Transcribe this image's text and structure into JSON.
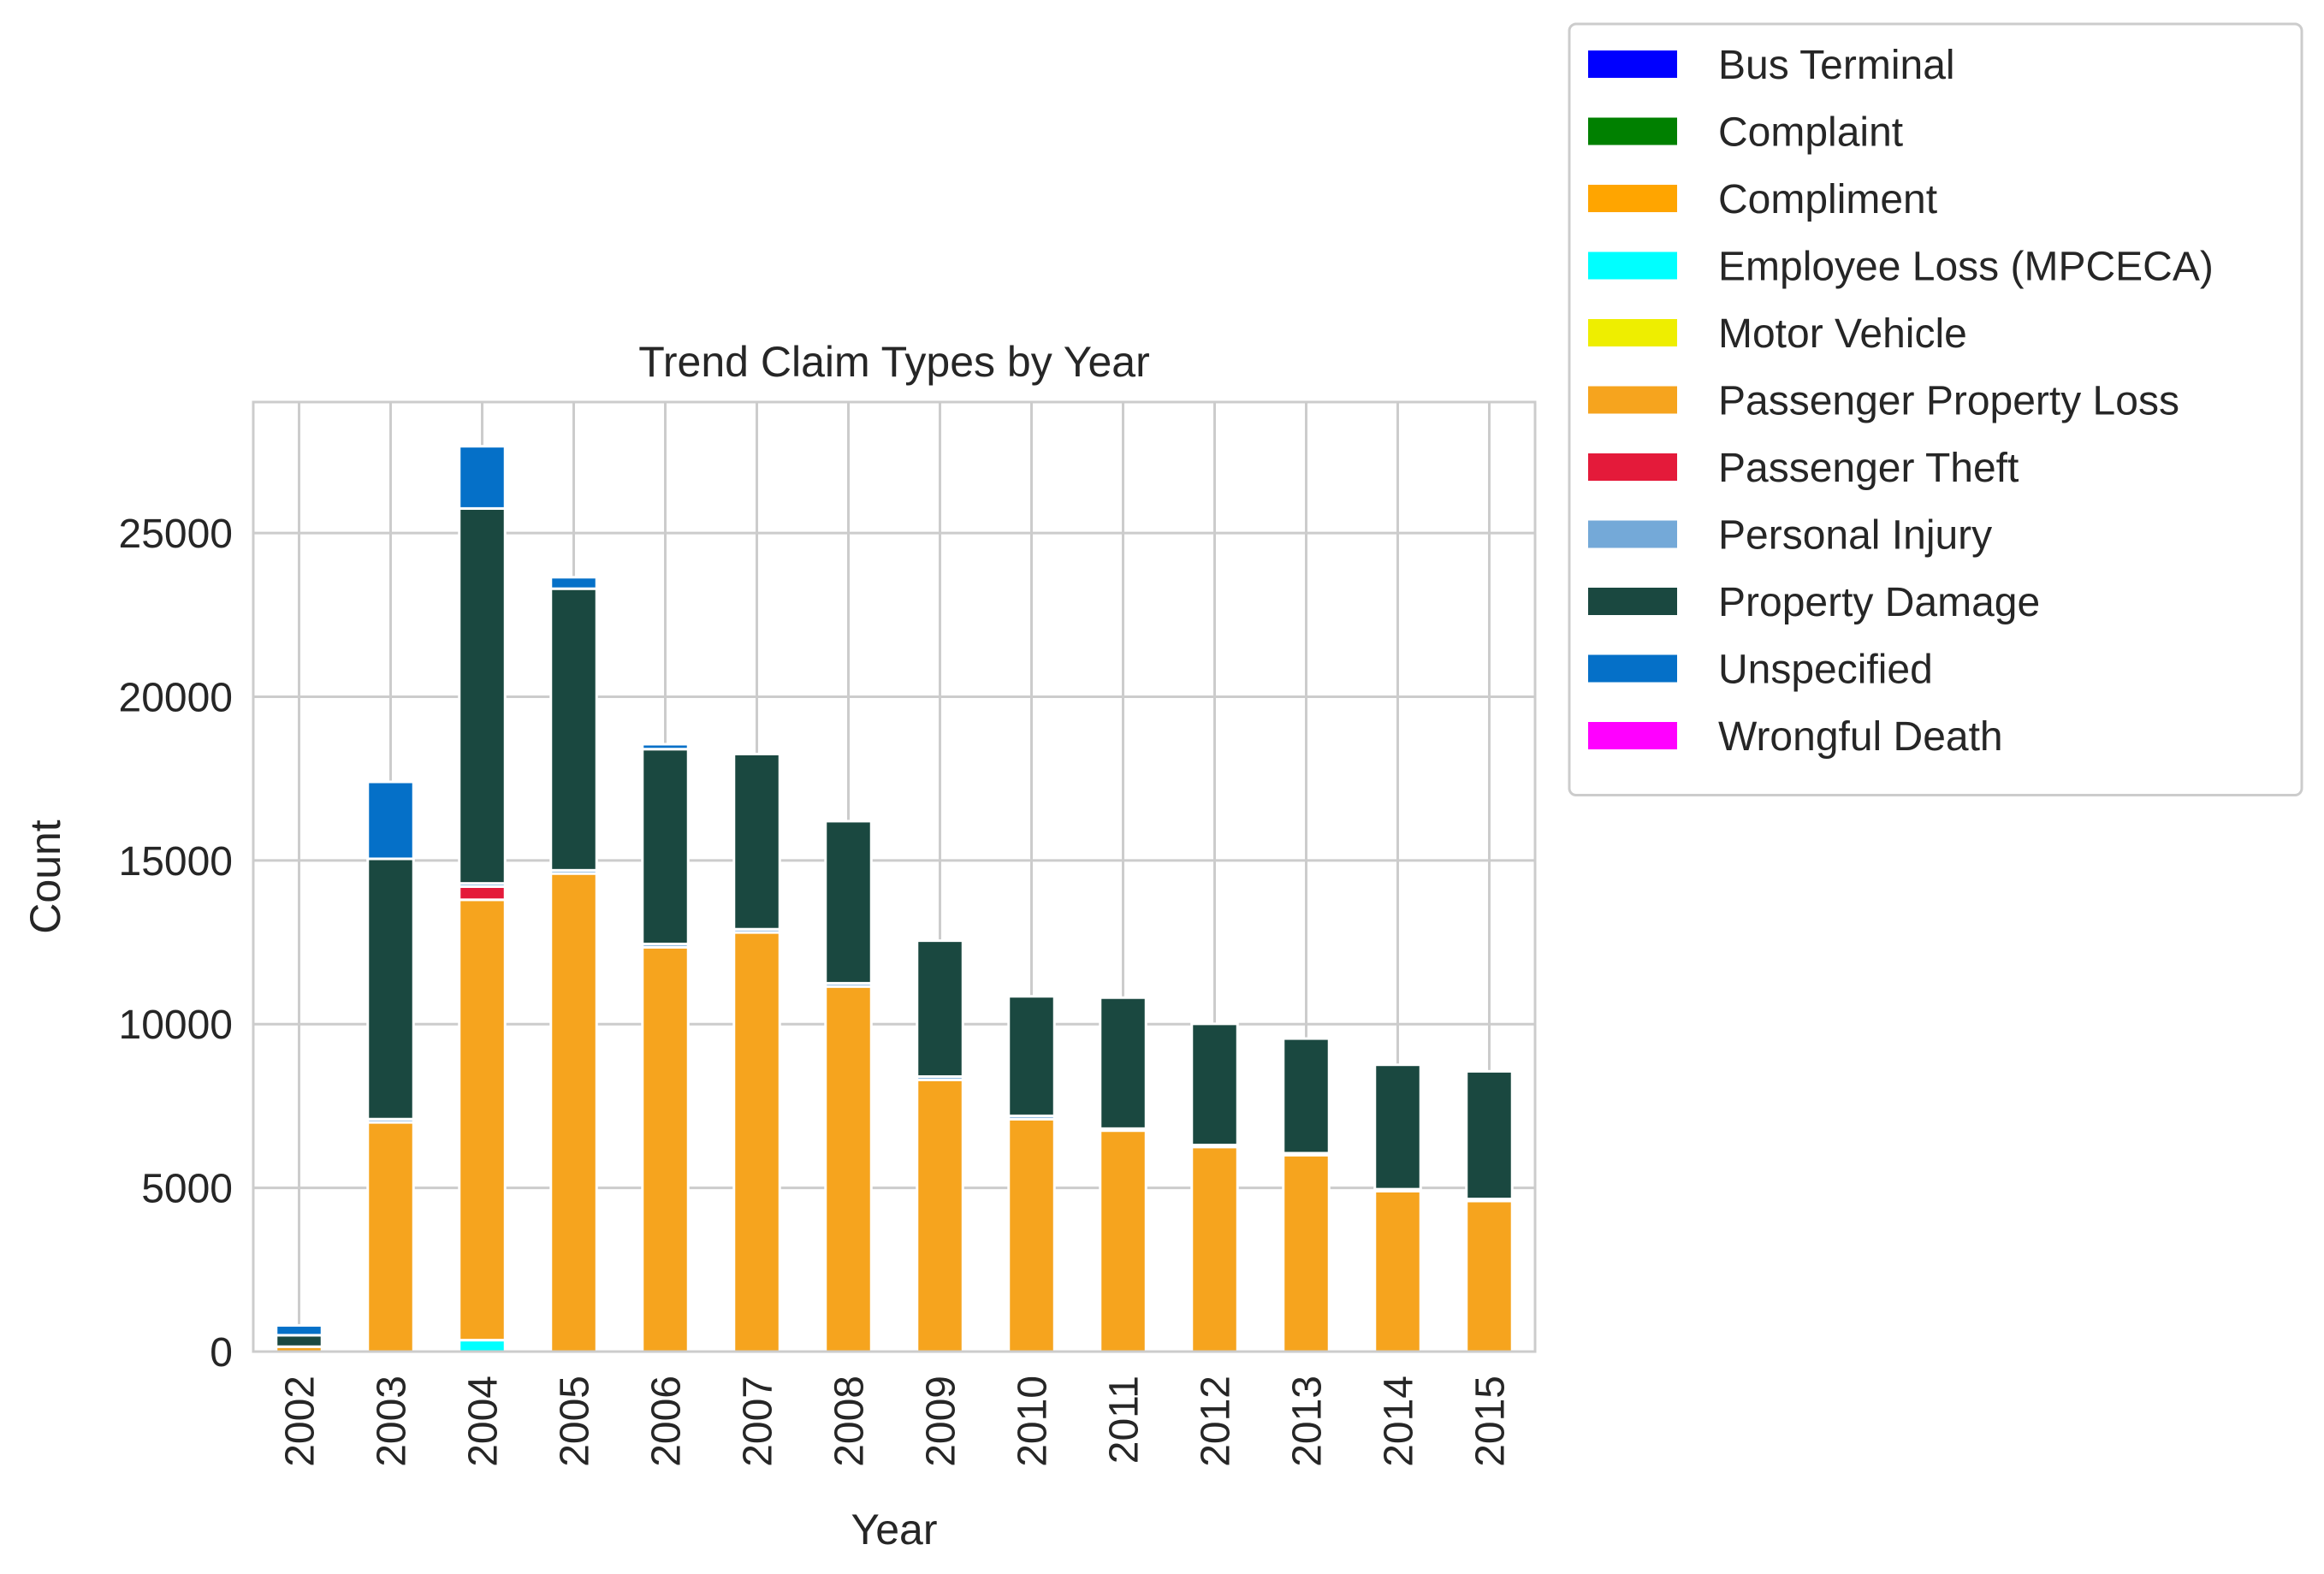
{
  "chart_data": {
    "type": "bar",
    "stacked": true,
    "title": "Trend Claim Types by Year",
    "xlabel": "Year",
    "ylabel": "Count",
    "ylim": [
      0,
      29000
    ],
    "yticks": [
      0,
      5000,
      10000,
      15000,
      20000,
      25000
    ],
    "grid": true,
    "legend_position": "outside top-right",
    "categories": [
      "2002",
      "2003",
      "2004",
      "2005",
      "2006",
      "2007",
      "2008",
      "2009",
      "2010",
      "2011",
      "2012",
      "2013",
      "2014",
      "2015"
    ],
    "series": [
      {
        "name": "Bus Terminal",
        "color": "#0000ff",
        "values": [
          0,
          0,
          0,
          0,
          0,
          0,
          0,
          0,
          0,
          0,
          0,
          0,
          0,
          0
        ]
      },
      {
        "name": "Complaint",
        "color": "#008000",
        "values": [
          0,
          0,
          0,
          0,
          0,
          0,
          0,
          0,
          0,
          0,
          0,
          0,
          0,
          0
        ]
      },
      {
        "name": "Compliment",
        "color": "#ffa500",
        "values": [
          0,
          0,
          0,
          0,
          0,
          0,
          0,
          0,
          0,
          0,
          0,
          0,
          0,
          0
        ]
      },
      {
        "name": "Employee Loss (MPCECA)",
        "color": "#00ffff",
        "values": [
          0,
          0,
          350,
          0,
          0,
          0,
          0,
          0,
          0,
          0,
          0,
          0,
          0,
          0
        ]
      },
      {
        "name": "Motor Vehicle",
        "color": "#eeee00",
        "values": [
          0,
          0,
          0,
          0,
          0,
          0,
          0,
          0,
          0,
          0,
          0,
          0,
          0,
          0
        ]
      },
      {
        "name": "Passenger Property Loss",
        "color": "#f6a41e",
        "values": [
          150,
          7000,
          13450,
          14600,
          12350,
          12800,
          11150,
          8300,
          7100,
          6750,
          6250,
          6000,
          4900,
          4600
        ]
      },
      {
        "name": "Passenger Theft",
        "color": "#e41a3a",
        "values": [
          0,
          0,
          400,
          0,
          0,
          0,
          0,
          0,
          0,
          0,
          0,
          0,
          0,
          0
        ]
      },
      {
        "name": "Personal Injury",
        "color": "#74a9d8",
        "values": [
          0,
          100,
          100,
          100,
          100,
          100,
          100,
          100,
          100,
          60,
          60,
          60,
          60,
          60
        ]
      },
      {
        "name": "Property Damage",
        "color": "#1a4840",
        "values": [
          350,
          7950,
          11450,
          8600,
          5950,
          5350,
          4950,
          4150,
          3650,
          4000,
          3700,
          3500,
          3800,
          3900
        ]
      },
      {
        "name": "Unspecified",
        "color": "#0570c8",
        "values": [
          300,
          2350,
          1900,
          350,
          150,
          0,
          0,
          0,
          0,
          0,
          0,
          0,
          0,
          0
        ]
      },
      {
        "name": "Wrongful Death",
        "color": "#ff00ff",
        "values": [
          0,
          0,
          0,
          0,
          0,
          0,
          0,
          0,
          0,
          0,
          0,
          0,
          0,
          0
        ]
      }
    ]
  }
}
